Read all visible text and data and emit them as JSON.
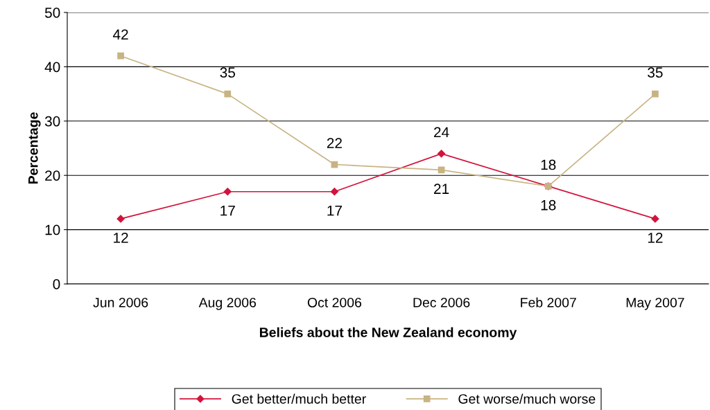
{
  "chart_data": {
    "type": "line",
    "xlabel": "Beliefs about the New Zealand economy",
    "ylabel": "Percentage",
    "categories": [
      "Jun 2006",
      "Aug 2006",
      "Oct 2006",
      "Dec 2006",
      "Feb 2007",
      "May 2007"
    ],
    "series": [
      {
        "name": "Get better/much better",
        "color": "#d2143c",
        "marker": "diamond",
        "values": [
          12,
          17,
          17,
          24,
          18,
          12
        ]
      },
      {
        "name": "Get worse/much worse",
        "color": "#c8b482",
        "marker": "square",
        "values": [
          42,
          35,
          22,
          21,
          18,
          35
        ]
      }
    ],
    "ylim": [
      0,
      50
    ],
    "yticks": [
      0,
      10,
      20,
      30,
      40,
      50
    ],
    "grid": "y",
    "legend": "bottom",
    "data_labels": true,
    "line_style": "solid"
  }
}
